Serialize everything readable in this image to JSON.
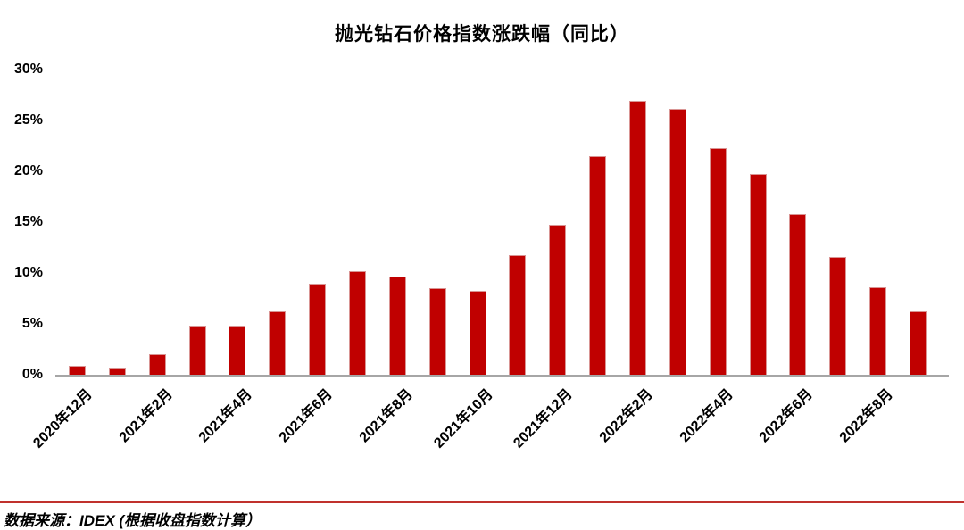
{
  "title": "抛光钻石价格指数涨跌幅（同比）",
  "source_note": "数据来源：IDEX (根据收盘指数计算）",
  "colors": {
    "bar_fill": "#C00000",
    "bar_border": "#D99594",
    "axis_line": "#A6A6A6",
    "separator_line": "#C0312D",
    "text": "#000000"
  },
  "chart_data": {
    "type": "bar",
    "title": "抛光钻石价格指数涨跌幅（同比）",
    "categories": [
      "2020年12月",
      "2021年1月",
      "2021年2月",
      "2021年3月",
      "2021年4月",
      "2021年5月",
      "2021年6月",
      "2021年7月",
      "2021年8月",
      "2021年9月",
      "2021年10月",
      "2021年11月",
      "2021年12月",
      "2022年1月",
      "2022年2月",
      "2022年3月",
      "2022年4月",
      "2022年5月",
      "2022年6月",
      "2022年7月",
      "2022年8月",
      "2022年9月"
    ],
    "values": [
      1.0,
      0.8,
      2.1,
      4.9,
      4.9,
      6.3,
      9.0,
      10.3,
      9.7,
      8.6,
      8.3,
      11.8,
      14.8,
      21.6,
      27.0,
      26.2,
      22.4,
      19.8,
      15.9,
      11.7,
      8.7,
      6.3
    ],
    "x_tick_labels": [
      "2020年12月",
      "2021年2月",
      "2021年4月",
      "2021年6月",
      "2021年8月",
      "2021年10月",
      "2021年12月",
      "2022年2月",
      "2022年4月",
      "2022年6月",
      "2022年8月"
    ],
    "x_tick_every_n_bars": 2,
    "y_ticks": [
      "0%",
      "5%",
      "10%",
      "15%",
      "20%",
      "25%",
      "30%"
    ],
    "ylim": [
      0,
      30
    ],
    "ylabel": "",
    "xlabel": "",
    "grid": "off",
    "legend": "none",
    "x_label_rotation_deg": -45,
    "source_note": "数据来源：IDEX (根据收盘指数计算）"
  }
}
